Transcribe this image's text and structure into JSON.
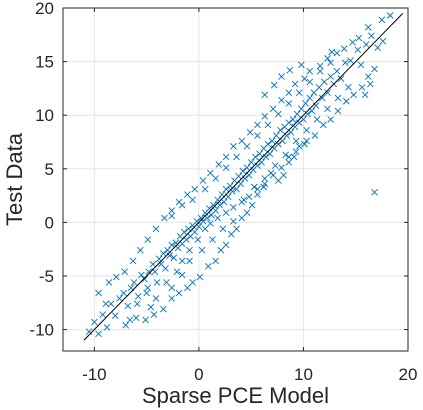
{
  "chart_data": {
    "type": "scatter",
    "title": "",
    "xlabel": "Sparse PCE Model",
    "ylabel": "Test Data",
    "xlim": [
      -13,
      20
    ],
    "ylim": [
      -12,
      20
    ],
    "x_ticks": [
      -10,
      0,
      10,
      20
    ],
    "y_ticks": [
      -10,
      -5,
      0,
      5,
      10,
      15,
      20
    ],
    "x_tick_labels": [
      "-10",
      "0",
      "10",
      "20"
    ],
    "y_tick_labels": [
      "-10",
      "-5",
      "0",
      "5",
      "10",
      "15",
      "20"
    ],
    "grid": true,
    "legend": "none",
    "reference_line": {
      "from": [
        -11,
        -11
      ],
      "to": [
        19.5,
        19.5
      ]
    },
    "marker": "x",
    "colors": {
      "marker": "#0072BD",
      "line": "#000000",
      "axis": "#262626",
      "grid": "#e6e6e6"
    },
    "series": [
      {
        "points": [
          [
            -10.5,
            -10.2
          ],
          [
            -10,
            -9.3
          ],
          [
            -9.6,
            -10.4
          ],
          [
            -9.2,
            -8.6
          ],
          [
            -8.8,
            -9.8
          ],
          [
            -8.4,
            -7.6
          ],
          [
            -8,
            -8.7
          ],
          [
            -7.6,
            -7.1
          ],
          [
            -7.2,
            -6.6
          ],
          [
            -7,
            -9.6
          ],
          [
            -6.8,
            -7.8
          ],
          [
            -6.5,
            -6.1
          ],
          [
            -6.2,
            -5.6
          ],
          [
            -6,
            -8.9
          ],
          [
            -5.8,
            -6.9
          ],
          [
            -5.5,
            -4.9
          ],
          [
            -5.2,
            -5.3
          ],
          [
            -5,
            -6.6
          ],
          [
            -4.8,
            -4.6
          ],
          [
            -4.6,
            -7.9
          ],
          [
            -4.4,
            -3.9
          ],
          [
            -4.2,
            -4.6
          ],
          [
            -4,
            -5.6
          ],
          [
            -3.8,
            -3.4
          ],
          [
            -3.6,
            -3.9
          ],
          [
            -3.4,
            -2.9
          ],
          [
            -3.2,
            -4.3
          ],
          [
            -3,
            -2.6
          ],
          [
            -2.8,
            -3.1
          ],
          [
            -2.6,
            -2.1
          ],
          [
            -2.4,
            -3.3
          ],
          [
            -2.2,
            -1.9
          ],
          [
            -2,
            -2.4
          ],
          [
            -1.8,
            -1.3
          ],
          [
            -1.6,
            -2
          ],
          [
            -1.4,
            -0.9
          ],
          [
            -1.2,
            -1.6
          ],
          [
            -1,
            -0.6
          ],
          [
            -0.8,
            -1.3
          ],
          [
            -0.6,
            -0.3
          ],
          [
            -0.4,
            -0.9
          ],
          [
            -0.2,
            0.1
          ],
          [
            0,
            -0.4
          ],
          [
            0.2,
            0.4
          ],
          [
            0.4,
            0.1
          ],
          [
            0.6,
            0.9
          ],
          [
            0.8,
            0.4
          ],
          [
            1,
            1.3
          ],
          [
            1.2,
            0.7
          ],
          [
            1.4,
            1.6
          ],
          [
            1.6,
            1.1
          ],
          [
            1.8,
            2.1
          ],
          [
            2,
            1.6
          ],
          [
            2.2,
            2.6
          ],
          [
            2.4,
            1.9
          ],
          [
            2.6,
            3.1
          ],
          [
            2.8,
            2.4
          ],
          [
            3,
            3.4
          ],
          [
            3.2,
            2.9
          ],
          [
            3.4,
            3.9
          ],
          [
            3.6,
            3.1
          ],
          [
            3.8,
            4.3
          ],
          [
            4,
            3.6
          ],
          [
            4.2,
            4.8
          ],
          [
            4.4,
            4.1
          ],
          [
            4.6,
            5.1
          ],
          [
            4.8,
            4.4
          ],
          [
            5,
            5.6
          ],
          [
            5.2,
            4.9
          ],
          [
            5.4,
            6.1
          ],
          [
            5.6,
            5.3
          ],
          [
            5.8,
            6.4
          ],
          [
            6,
            5.6
          ],
          [
            6.2,
            6.9
          ],
          [
            6.4,
            6.1
          ],
          [
            6.6,
            7.3
          ],
          [
            6.8,
            6.4
          ],
          [
            7,
            7.6
          ],
          [
            7.2,
            6.9
          ],
          [
            7.4,
            8.1
          ],
          [
            7.6,
            7.3
          ],
          [
            7.8,
            8.6
          ],
          [
            8,
            7.6
          ],
          [
            8.2,
            8.9
          ],
          [
            8.4,
            8.1
          ],
          [
            8.6,
            9.3
          ],
          [
            8.8,
            8.4
          ],
          [
            9,
            9.6
          ],
          [
            9.2,
            8.9
          ],
          [
            9.4,
            10.1
          ],
          [
            9.6,
            9.3
          ],
          [
            9.8,
            10.6
          ],
          [
            10,
            9.6
          ],
          [
            10.2,
            11.1
          ],
          [
            10.4,
            10.1
          ],
          [
            10.6,
            11.6
          ],
          [
            10.8,
            10.4
          ],
          [
            11,
            12.1
          ],
          [
            11.2,
            10.9
          ],
          [
            11.5,
            12.6
          ],
          [
            11.8,
            11.6
          ],
          [
            12,
            13.1
          ],
          [
            12.3,
            12.1
          ],
          [
            12.6,
            13.6
          ],
          [
            12.9,
            12.9
          ],
          [
            13.2,
            14.1
          ],
          [
            13.6,
            13.4
          ],
          [
            14,
            14.9
          ],
          [
            14.5,
            15.1
          ],
          [
            15.2,
            16.1
          ],
          [
            16,
            16.6
          ],
          [
            16.5,
            17.4
          ],
          [
            17.5,
            18.9
          ],
          [
            18.3,
            19.3
          ],
          [
            16.8,
            14.3
          ],
          [
            16.4,
            12.9
          ],
          [
            15.9,
            11.9
          ],
          [
            15.5,
            14.7
          ],
          [
            13.2,
            15.8
          ],
          [
            12.3,
            15.3
          ],
          [
            10.6,
            14.1
          ],
          [
            9.8,
            14.7
          ],
          [
            8.7,
            14.2
          ],
          [
            7.9,
            13.6
          ],
          [
            7.2,
            12.8
          ],
          [
            6.3,
            11.9
          ],
          [
            9.2,
            12.9
          ],
          [
            10.1,
            13.4
          ],
          [
            11.6,
            14.6
          ],
          [
            12.7,
            15.9
          ],
          [
            13.9,
            16.2
          ],
          [
            14.7,
            16.8
          ],
          [
            15.3,
            17.2
          ],
          [
            16.2,
            18.2
          ],
          [
            17.1,
            16.3
          ],
          [
            17.6,
            16.9
          ],
          [
            8.6,
            5.6
          ],
          [
            9.1,
            6.1
          ],
          [
            9.6,
            7.1
          ],
          [
            10.3,
            7.6
          ],
          [
            11.1,
            8.1
          ],
          [
            11.9,
            9.1
          ],
          [
            12.6,
            9.6
          ],
          [
            13.3,
            10.4
          ],
          [
            14.1,
            11.3
          ],
          [
            14.8,
            11.9
          ],
          [
            15.6,
            12.6
          ],
          [
            16.2,
            13.6
          ],
          [
            16.8,
            2.8
          ],
          [
            7.6,
            3.9
          ],
          [
            8.1,
            4.4
          ],
          [
            6.9,
            4.6
          ],
          [
            6.2,
            3.3
          ],
          [
            5.6,
            2.6
          ],
          [
            5.1,
            1.6
          ],
          [
            4.6,
            0.9
          ],
          [
            4.1,
            0.4
          ],
          [
            3.6,
            -0.6
          ],
          [
            3.1,
            -1.1
          ],
          [
            2.6,
            -2.1
          ],
          [
            2.1,
            -2.6
          ],
          [
            1.6,
            -3.6
          ],
          [
            0.9,
            -4.1
          ],
          [
            0.1,
            -5.1
          ],
          [
            -0.6,
            -5.6
          ],
          [
            -1.1,
            -6.1
          ],
          [
            -1.9,
            -6.6
          ],
          [
            -2.6,
            -7.1
          ],
          [
            -3.4,
            -8.1
          ],
          [
            -4.3,
            -8.6
          ],
          [
            -5.1,
            -9.1
          ],
          [
            -2.1,
            -4.6
          ],
          [
            -1.6,
            -3.6
          ],
          [
            -0.9,
            -2.6
          ],
          [
            -0.1,
            -1.6
          ],
          [
            0.6,
            -0.6
          ],
          [
            1.1,
            -0.1
          ],
          [
            1.8,
            0.4
          ],
          [
            2.6,
            0.9
          ],
          [
            3.3,
            1.4
          ],
          [
            4.1,
            1.9
          ],
          [
            4.8,
            2.4
          ],
          [
            5.6,
            3.1
          ],
          [
            6.3,
            3.6
          ],
          [
            7.1,
            4.4
          ],
          [
            7.9,
            5.1
          ],
          [
            8.6,
            6.1
          ],
          [
            9.3,
            6.6
          ],
          [
            10.1,
            7.3
          ],
          [
            -8.6,
            -5.6
          ],
          [
            -7.9,
            -5.1
          ],
          [
            -7.1,
            -4.6
          ],
          [
            -6.3,
            -3.6
          ],
          [
            -5.6,
            -2.6
          ],
          [
            -4.9,
            -1.6
          ],
          [
            -4.1,
            -0.6
          ],
          [
            -3.3,
            0.4
          ],
          [
            -2.6,
            1.1
          ],
          [
            -1.9,
            1.9
          ],
          [
            -1.1,
            2.6
          ],
          [
            -0.4,
            3.1
          ],
          [
            0.4,
            3.9
          ],
          [
            1.1,
            4.6
          ],
          [
            1.9,
            5.4
          ],
          [
            2.6,
            6.1
          ],
          [
            3.3,
            7.1
          ],
          [
            4.1,
            7.6
          ],
          [
            4.9,
            8.4
          ],
          [
            5.6,
            9.1
          ],
          [
            6.3,
            9.9
          ],
          [
            7.1,
            10.6
          ],
          [
            7.9,
            11.4
          ],
          [
            8.6,
            12.1
          ],
          [
            -9.6,
            -6.6
          ],
          [
            -8.9,
            -7.6
          ],
          [
            -6.6,
            -9.1
          ],
          [
            -5.9,
            -7.6
          ],
          [
            -4.9,
            -6.1
          ],
          [
            -4.1,
            -7.1
          ],
          [
            -3.1,
            -5.6
          ],
          [
            -2.6,
            -6.1
          ],
          [
            -1.6,
            -4.9
          ],
          [
            -0.9,
            -3.6
          ],
          [
            0.3,
            -2.6
          ],
          [
            1.3,
            -1.6
          ],
          [
            2.3,
            -0.6
          ],
          [
            3.3,
            0.1
          ],
          [
            4.3,
            2.1
          ],
          [
            5.3,
            3.3
          ],
          [
            6.3,
            4.1
          ],
          [
            7.3,
            5.3
          ],
          [
            8.3,
            6.3
          ],
          [
            9.3,
            7.6
          ],
          [
            10.3,
            8.6
          ],
          [
            11.3,
            9.6
          ],
          [
            12.3,
            10.6
          ],
          [
            13.3,
            11.6
          ],
          [
            14.3,
            12.6
          ],
          [
            -2.6,
            0.6
          ],
          [
            -1.6,
            1.6
          ],
          [
            -0.6,
            2.1
          ],
          [
            0.6,
            3.1
          ],
          [
            1.6,
            4.1
          ],
          [
            2.6,
            5.1
          ],
          [
            3.6,
            6.1
          ],
          [
            4.6,
            7.1
          ],
          [
            5.6,
            8.1
          ],
          [
            6.6,
            9.1
          ],
          [
            7.6,
            10.1
          ],
          [
            8.6,
            11.1
          ],
          [
            9.6,
            12.1
          ],
          [
            10.6,
            13.1
          ],
          [
            11.6,
            14.1
          ],
          [
            12.6,
            14.9
          ]
        ]
      }
    ]
  }
}
